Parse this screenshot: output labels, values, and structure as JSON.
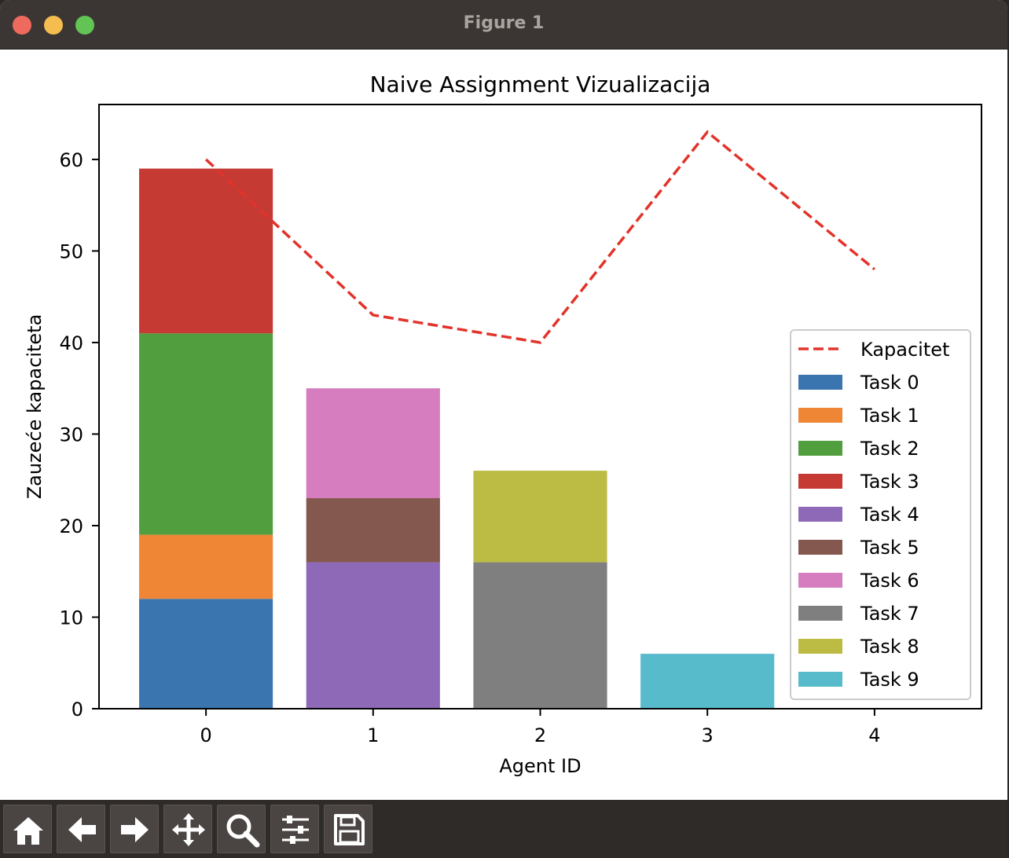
{
  "window": {
    "title": "Figure 1"
  },
  "toolbar": {
    "buttons": [
      {
        "name": "home-button",
        "icon": "home-icon"
      },
      {
        "name": "back-button",
        "icon": "arrow-left-icon"
      },
      {
        "name": "forward-button",
        "icon": "arrow-right-icon"
      },
      {
        "name": "pan-button",
        "icon": "move-icon"
      },
      {
        "name": "zoom-button",
        "icon": "magnifier-icon"
      },
      {
        "name": "configure-subplots-button",
        "icon": "sliders-icon"
      },
      {
        "name": "save-button",
        "icon": "floppy-disk-icon"
      }
    ]
  },
  "chart_data": {
    "type": "bar",
    "stacked": true,
    "title": "Naive Assignment Vizualizacija",
    "xlabel": "Agent ID",
    "ylabel": "Zauzeće kapaciteta",
    "categories": [
      "0",
      "1",
      "2",
      "3",
      "4"
    ],
    "x": [
      0,
      1,
      2,
      3,
      4
    ],
    "xlim": [
      -0.64,
      4.64
    ],
    "ylim": [
      0,
      66
    ],
    "yticks": [
      0,
      10,
      20,
      30,
      40,
      50,
      60
    ],
    "grid": false,
    "legend_position": "lower right",
    "segments": [
      {
        "name": "Task 0",
        "agent": 0,
        "bottom": 0,
        "value": 12,
        "color": "#3b75af"
      },
      {
        "name": "Task 1",
        "agent": 0,
        "bottom": 12,
        "value": 7,
        "color": "#ef8636"
      },
      {
        "name": "Task 2",
        "agent": 0,
        "bottom": 19,
        "value": 22,
        "color": "#519e3e"
      },
      {
        "name": "Task 3",
        "agent": 0,
        "bottom": 41,
        "value": 18,
        "color": "#c53a32"
      },
      {
        "name": "Task 4",
        "agent": 1,
        "bottom": 0,
        "value": 16,
        "color": "#8d69b8"
      },
      {
        "name": "Task 5",
        "agent": 1,
        "bottom": 16,
        "value": 7,
        "color": "#84584e"
      },
      {
        "name": "Task 6",
        "agent": 1,
        "bottom": 23,
        "value": 12,
        "color": "#d57dbe"
      },
      {
        "name": "Task 7",
        "agent": 2,
        "bottom": 0,
        "value": 16,
        "color": "#7f7f7f"
      },
      {
        "name": "Task 8",
        "agent": 2,
        "bottom": 16,
        "value": 10,
        "color": "#bcbc45"
      },
      {
        "name": "Task 9",
        "agent": 3,
        "bottom": 0,
        "value": 6,
        "color": "#58bbcc"
      }
    ],
    "line": {
      "name": "Kapacitet",
      "style": "dashed",
      "color": "#e2332b",
      "values": [
        60,
        43,
        40,
        63,
        48
      ]
    },
    "legend": [
      "Kapacitet",
      "Task 0",
      "Task 1",
      "Task 2",
      "Task 3",
      "Task 4",
      "Task 5",
      "Task 6",
      "Task 7",
      "Task 8",
      "Task 9"
    ]
  }
}
